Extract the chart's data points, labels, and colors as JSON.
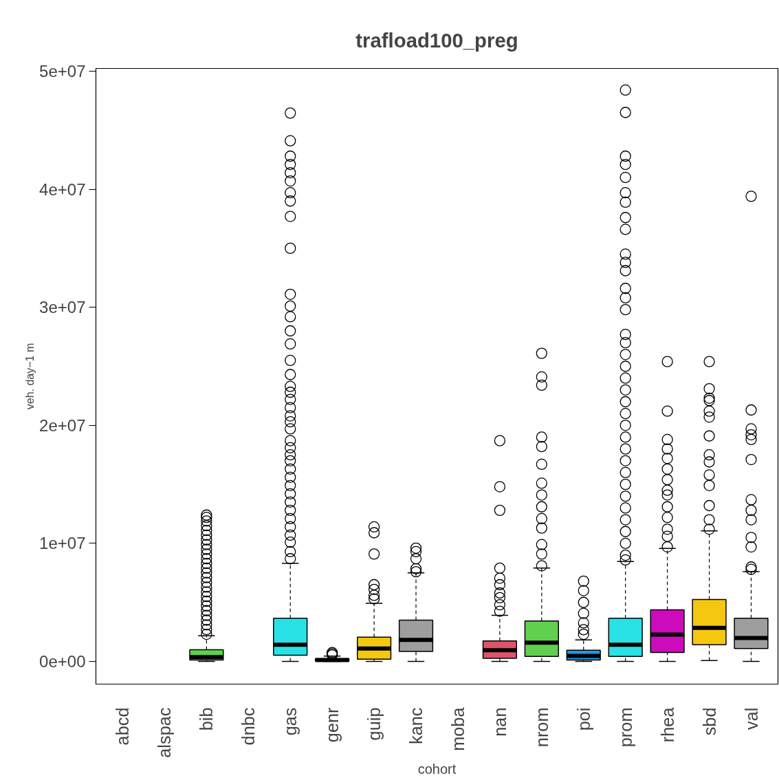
{
  "chart_data": {
    "type": "box",
    "title": "trafload100_preg",
    "xlabel": "cohort",
    "ylabel": "veh. day−1 m",
    "categories": [
      "abcd",
      "alspac",
      "bib",
      "dnbc",
      "gas",
      "genr",
      "guip",
      "kanc",
      "moba",
      "nan",
      "nrom",
      "poi",
      "prom",
      "rhea",
      "sbd",
      "val"
    ],
    "colors": [
      null,
      null,
      "#61d04f",
      null,
      "#28e2e5",
      "#cd0bbc",
      "#f5c710",
      "#9e9e9e",
      null,
      "#df536b",
      "#61d04f",
      "#2297e6",
      "#28e2e5",
      "#cd0bbc",
      "#f5c710",
      "#9e9e9e"
    ],
    "boxes": [
      null,
      null,
      {
        "low": 0,
        "q1": 120000,
        "median": 370000,
        "q3": 1000000,
        "high": 2170000,
        "outliers": [
          2300000,
          2700000,
          3100000,
          3500000,
          3900000,
          4300000,
          4700000,
          5100000,
          5500000,
          5900000,
          6300000,
          6700000,
          7100000,
          7500000,
          7900000,
          8300000,
          8700000,
          9100000,
          9500000,
          9900000,
          10300000,
          10700000,
          11100000,
          11500000,
          11900000,
          12200000,
          12400000
        ]
      },
      null,
      {
        "low": 0,
        "q1": 520000,
        "median": 1410000,
        "q3": 3660000,
        "high": 8310000,
        "outliers": [
          8700000,
          9300000,
          10100000,
          10700000,
          11400000,
          12100000,
          12800000,
          13500000,
          14200000,
          14900000,
          15600000,
          16300000,
          17000000,
          17500000,
          18100000,
          18700000,
          19700000,
          20300000,
          20800000,
          21500000,
          22200000,
          22800000,
          23300000,
          24300000,
          25500000,
          26900000,
          28000000,
          29200000,
          30100000,
          31100000,
          35000000,
          37700000,
          39000000,
          39700000,
          40700000,
          41400000,
          42100000,
          42800000,
          44100000,
          46450000
        ]
      },
      {
        "low": 0,
        "q1": 30000,
        "median": 120000,
        "q3": 230000,
        "high": 450000,
        "outliers": [
          550000,
          650000,
          750000
        ]
      },
      {
        "low": 0,
        "q1": 190000,
        "median": 1100000,
        "q3": 2050000,
        "high": 4920000,
        "outliers": [
          5300000,
          5600000,
          6100000,
          6500000,
          9100000,
          10900000,
          11400000
        ]
      },
      {
        "low": 0,
        "q1": 850000,
        "median": 1820000,
        "q3": 3500000,
        "high": 7500000,
        "outliers": [
          7600000,
          7850000,
          8700000,
          9300000,
          9600000
        ]
      },
      null,
      {
        "low": 0,
        "q1": 270000,
        "median": 950000,
        "q3": 1730000,
        "high": 3900000,
        "outliers": [
          4250000,
          4800000,
          5400000,
          5800000,
          6500000,
          7050000,
          7900000,
          12800000,
          14800000,
          18700000
        ]
      },
      {
        "low": 0,
        "q1": 420000,
        "median": 1590000,
        "q3": 3430000,
        "high": 7920000,
        "outliers": [
          8100000,
          9100000,
          9900000,
          11300000,
          12100000,
          13100000,
          14100000,
          15100000,
          16700000,
          18200000,
          19000000,
          23400000,
          24100000,
          26100000
        ]
      },
      {
        "low": 0,
        "q1": 120000,
        "median": 470000,
        "q3": 950000,
        "high": 1820000,
        "outliers": [
          2300000,
          2690000,
          3270000,
          4070000,
          5000000,
          6000000,
          6800000
        ]
      },
      {
        "low": 0,
        "q1": 420000,
        "median": 1410000,
        "q3": 3660000,
        "high": 8470000,
        "outliers": [
          8600000,
          9000000,
          10000000,
          11000000,
          12000000,
          13000000,
          14000000,
          15000000,
          16000000,
          17000000,
          18000000,
          19000000,
          20000000,
          21000000,
          22000000,
          23000000,
          24000000,
          25000000,
          26000000,
          27000000,
          27700000,
          29800000,
          30800000,
          31600000,
          33100000,
          33800000,
          34500000,
          36600000,
          37600000,
          38900000,
          39700000,
          41000000,
          42100000,
          42800000,
          46500000,
          48400000
        ]
      },
      {
        "low": 0,
        "q1": 760000,
        "median": 2270000,
        "q3": 4380000,
        "high": 9580000,
        "outliers": [
          9700000,
          10600000,
          11200000,
          12200000,
          13100000,
          14100000,
          14500000,
          15400000,
          16300000,
          17200000,
          18000000,
          18800000,
          21200000,
          25400000
        ]
      },
      {
        "low": 80000,
        "q1": 1410000,
        "median": 2850000,
        "q3": 5250000,
        "high": 11060000,
        "outliers": [
          11200000,
          12000000,
          13200000,
          14900000,
          15800000,
          16900000,
          17500000,
          19100000,
          20700000,
          21200000,
          22100000,
          22300000,
          23100000,
          25400000
        ]
      },
      {
        "low": 0,
        "q1": 1090000,
        "median": 1980000,
        "q3": 3660000,
        "high": 7600000,
        "outliers": [
          7800000,
          8000000,
          9700000,
          10500000,
          12000000,
          12800000,
          13700000,
          17100000,
          18800000,
          19200000,
          19700000,
          21300000,
          39400000
        ]
      }
    ],
    "ylim": [
      -1920000,
      50230000
    ],
    "yticks": [
      {
        "value": 0,
        "label": "0e+00"
      },
      {
        "value": 10000000,
        "label": "1e+07"
      },
      {
        "value": 20000000,
        "label": "2e+07"
      },
      {
        "value": 30000000,
        "label": "3e+07"
      },
      {
        "value": 40000000,
        "label": "4e+07"
      },
      {
        "value": 50000000,
        "label": "5e+07"
      }
    ],
    "grid": false
  }
}
